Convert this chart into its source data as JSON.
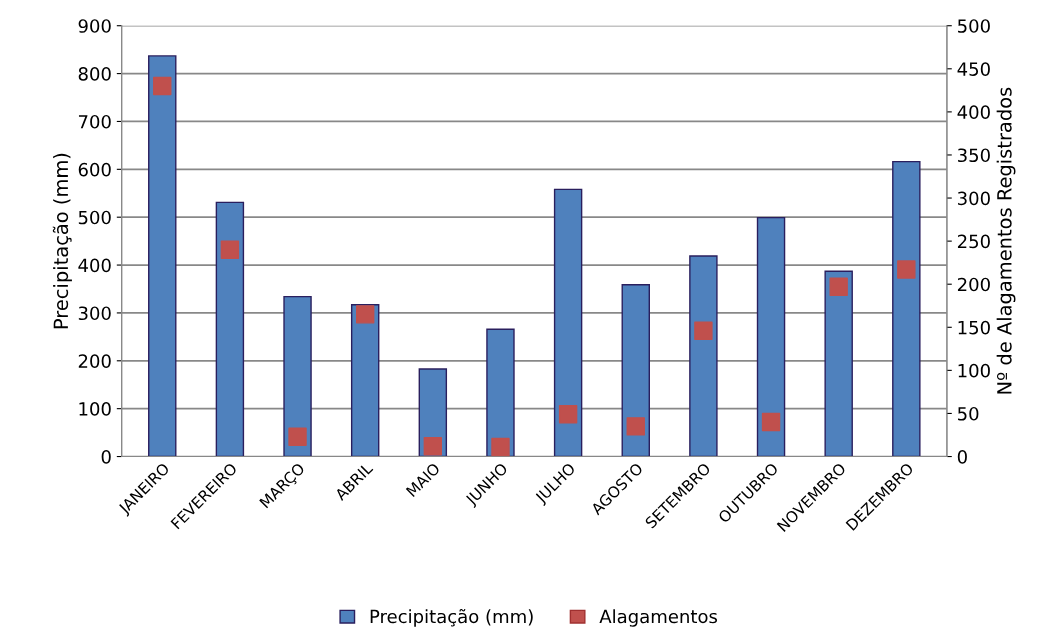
{
  "chart_data": {
    "type": "bar",
    "ylabel": "Precipitação (mm)",
    "y2label": "Nº de Alagamentos Registrados",
    "categories": [
      "JANEIRO",
      "FEVEREIRO",
      "MARÇO",
      "ABRIL",
      "MAIO",
      "JUNHO",
      "JULHO",
      "AGOSTO",
      "SETEMBRO",
      "OUTUBRO",
      "NOVEMBRO",
      "DEZEMBRO"
    ],
    "series": [
      {
        "name": "Precipitação (mm)",
        "color": "#4f81bd",
        "values": [
          837,
          531,
          334,
          317,
          183,
          266,
          558,
          359,
          419,
          499,
          387,
          616
        ]
      },
      {
        "name": "Alagamentos",
        "type": "scatter",
        "axis": "y2",
        "marker": "square",
        "color": "#c0504d",
        "values": [
          430,
          240,
          23,
          165,
          12,
          11,
          49,
          35,
          146,
          40,
          197,
          217
        ]
      }
    ],
    "ylim": [
      0,
      900
    ],
    "yticks": [
      0,
      100,
      200,
      300,
      400,
      500,
      600,
      700,
      800,
      900
    ],
    "y2lim": [
      0,
      500
    ],
    "y2ticks": [
      0,
      50,
      100,
      150,
      200,
      250,
      300,
      350,
      400,
      450,
      500
    ],
    "grid": "y",
    "legend": "bottom"
  }
}
